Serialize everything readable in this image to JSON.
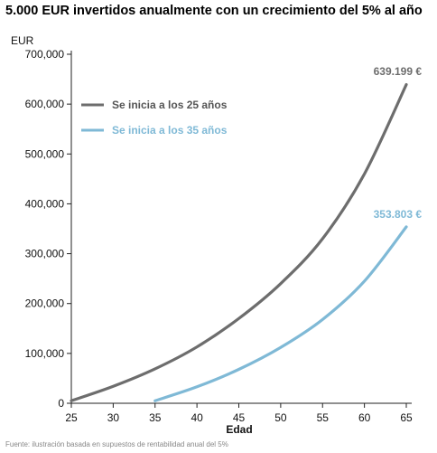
{
  "chart_data": {
    "type": "line",
    "title": "5.000 EUR invertidos anualmente con un crecimiento del 5% al año",
    "ylabel": "EUR",
    "xlabel": "Edad",
    "xlim": [
      25,
      65
    ],
    "ylim": [
      0,
      700000
    ],
    "x_ticks": [
      25,
      30,
      35,
      40,
      45,
      50,
      55,
      60,
      65
    ],
    "y_ticks": [
      0,
      100000,
      200000,
      300000,
      400000,
      500000,
      600000,
      700000
    ],
    "y_tick_labels": [
      "0",
      "100,000",
      "200,000",
      "300,000",
      "400,000",
      "500,000",
      "600,000",
      "700,000"
    ],
    "grid": false,
    "legend": "top-left",
    "series": [
      {
        "name": "Se inicia a los 25 años",
        "color": "#6d6d6d",
        "x": [
          25,
          30,
          35,
          40,
          45,
          50,
          55,
          60,
          65
        ],
        "values": [
          5000,
          34000,
          69000,
          113000,
          170000,
          240000,
          330000,
          460000,
          639199
        ],
        "end_label": "639.199 €"
      },
      {
        "name": "Se inicia a los 35 años",
        "color": "#7fb9d6",
        "x": [
          35,
          40,
          45,
          50,
          55,
          60,
          65
        ],
        "values": [
          5000,
          33000,
          68000,
          112000,
          168000,
          245000,
          353803
        ],
        "end_label": "353.803 €"
      }
    ]
  },
  "footnote": "Fuente: ilustración basada en supuestos de rentabilidad anual del 5%"
}
